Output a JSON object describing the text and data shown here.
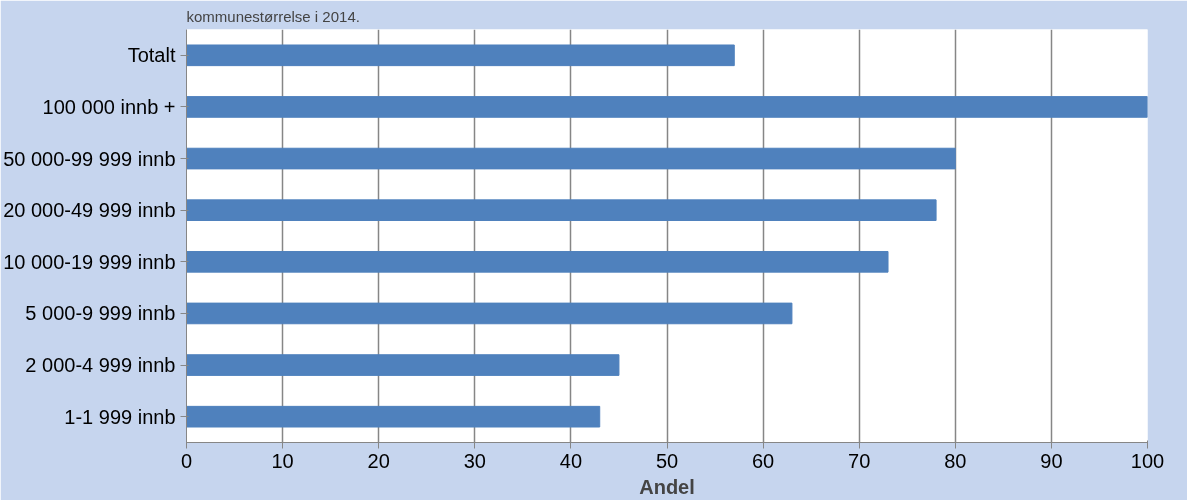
{
  "chart_data": {
    "type": "bar",
    "orientation": "horizontal",
    "title": "kommunestørrelse i 2014.",
    "xlabel": "Andel",
    "categories": [
      "Totalt",
      "100 000 innb +",
      "50 000-99 999 innb",
      "20 000-49 999 innb",
      "10 000-19 999 innb",
      "5 000-9 999 innb",
      "2 000-4 999 innb",
      "1-1 999 innb"
    ],
    "values": [
      57,
      100,
      80,
      78,
      73,
      63,
      45,
      43
    ],
    "color": "#4f81bd",
    "xlim": [
      0,
      100
    ],
    "xticks": [
      0,
      10,
      20,
      30,
      40,
      50,
      60,
      70,
      80,
      90,
      100
    ],
    "grid": "x"
  }
}
